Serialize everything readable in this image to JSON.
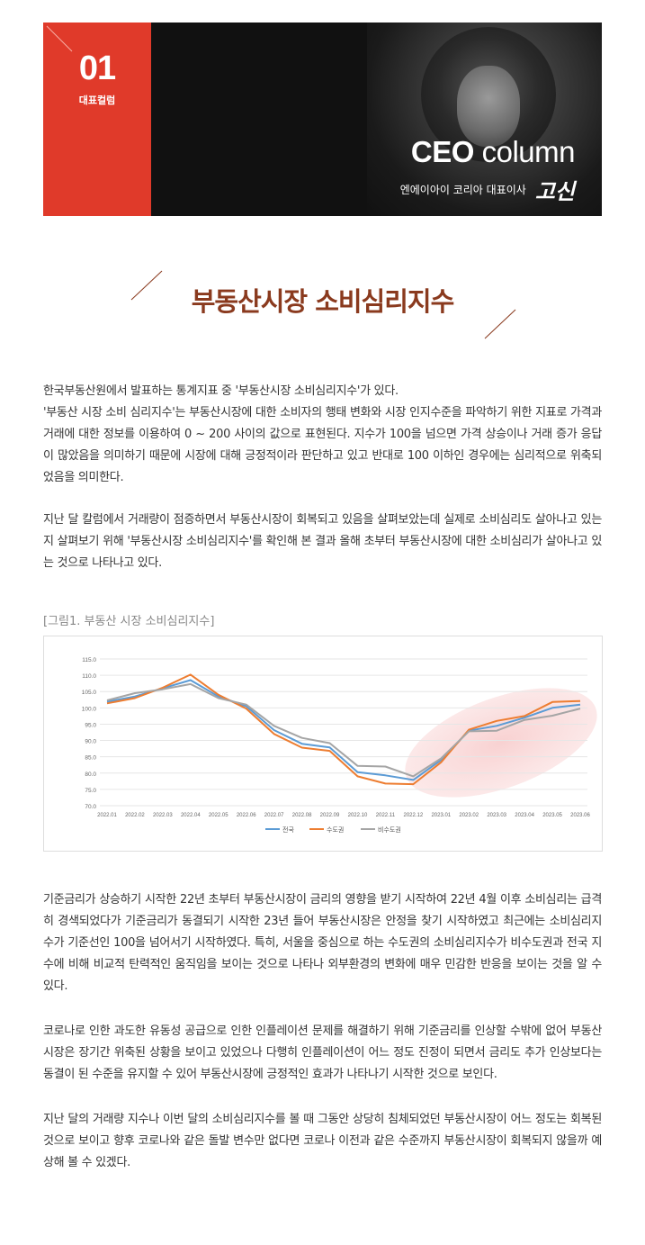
{
  "header": {
    "issue_number": "01",
    "issue_label": "대표컬럼",
    "title_bold": "CEO",
    "title_light": " column",
    "subtitle": "엔에이아이 코리아 대표이사",
    "signature": "고신"
  },
  "article": {
    "title": "부동산시장 소비심리지수",
    "paragraphs": [
      [
        "한국부동산원에서 발표하는 통계지표 중 '부동산시장 소비심리지수'가 있다.",
        "'부동산 시장 소비 심리지수'는 부동산시장에 대한 소비자의 행태 변화와 시장 인지수준을 파악하기 위한 지표로 가격과 거래에 대한 정보를 이용하여 0 ~ 200 사이의 값으로 표현된다. 지수가 100을 넘으면 가격 상승이나 거래 증가 응답이 많았음을 의미하기 때문에 시장에 대해 긍정적이라 판단하고 있고 반대로 100 이하인 경우에는 심리적으로 위축되었음을 의미한다."
      ],
      [
        "지난 달 칼럼에서 거래량이 점증하면서 부동산시장이 회복되고 있음을 살펴보았는데 실제로 소비심리도 살아나고 있는지 살펴보기 위해 '부동산시장 소비심리지수'를 확인해 본 결과 올해 초부터 부동산시장에 대한 소비심리가 살아나고 있는 것으로 나타나고 있다."
      ],
      [
        "기준금리가 상승하기 시작한 22년 초부터 부동산시장이 금리의 영향을 받기 시작하여 22년 4월 이후 소비심리는 급격히 경색되었다가 기준금리가 동결되기 시작한 23년 들어 부동산시장은 안정을 찾기 시작하였고 최근에는 소비심리지수가 기준선인 100을 넘어서기 시작하였다. 특히, 서울을 중심으로 하는 수도권의 소비심리지수가 비수도권과 전국 지수에 비해 비교적 탄력적인 움직임을 보이는 것으로 나타나 외부환경의 변화에 매우 민감한 반응을 보이는 것을 알 수 있다."
      ],
      [
        "코로나로 인한 과도한 유동성 공급으로 인한 인플레이션 문제를 해결하기 위해 기준금리를 인상할 수밖에 없어 부동산시장은 장기간 위축된 상황을 보이고 있었으나 다행히 인플레이션이 어느 정도 진정이 되면서 금리도 추가 인상보다는 동결이 된 수준을 유지할 수 있어 부동산시장에 긍정적인 효과가 나타나기 시작한 것으로 보인다."
      ],
      [
        "지난 달의 거래량 지수나 이번 달의 소비심리지수를 볼 때 그동안 상당히 침체되었던 부동산시장이 어느 정도는 회복된 것으로 보이고 향후 코로나와 같은 돌발 변수만 없다면 코로나 이전과 같은 수준까지 부동산시장이 회복되지 않을까 예상해 볼 수 있겠다."
      ]
    ],
    "figure_caption": "[그림1. 부동산 시장 소비심리지수]"
  },
  "chart_data": {
    "type": "line",
    "title": "",
    "xlabel": "",
    "ylabel": "",
    "ylim": [
      70,
      115
    ],
    "yticks": [
      "115.0",
      "110.0",
      "105.0",
      "100.0",
      "95.0",
      "90.0",
      "85.0",
      "80.0",
      "75.0",
      "70.0"
    ],
    "categories": [
      "2022.01",
      "2022.02",
      "2022.03",
      "2022.04",
      "2022.05",
      "2022.06",
      "2022.07",
      "2022.08",
      "2022.09",
      "2022.10",
      "2022.11",
      "2022.12",
      "2023.01",
      "2023.02",
      "2023.03",
      "2023.04",
      "2023.05",
      "2023.06"
    ],
    "series": [
      {
        "name": "전국",
        "color": "#5b9bd5",
        "values": [
          101.9,
          103.5,
          106.0,
          108.5,
          103.5,
          100.5,
          93.2,
          89.0,
          87.9,
          80.3,
          79.3,
          77.9,
          84.0,
          93.0,
          94.5,
          97.0,
          100.0,
          101.0
        ]
      },
      {
        "name": "수도권",
        "color": "#ed7d31",
        "values": [
          101.4,
          103.0,
          106.2,
          110.2,
          104.0,
          99.8,
          92.0,
          87.8,
          86.8,
          79.0,
          76.8,
          76.6,
          83.3,
          93.3,
          96.0,
          97.5,
          101.8,
          102.1
        ]
      },
      {
        "name": "비수도권",
        "color": "#a5a5a5",
        "values": [
          102.3,
          104.5,
          105.7,
          107.3,
          103.0,
          101.0,
          94.5,
          90.8,
          89.2,
          82.2,
          82.0,
          79.0,
          84.5,
          92.8,
          93.0,
          96.3,
          97.6,
          99.8
        ]
      }
    ],
    "legend_position": "bottom",
    "grid": true
  }
}
